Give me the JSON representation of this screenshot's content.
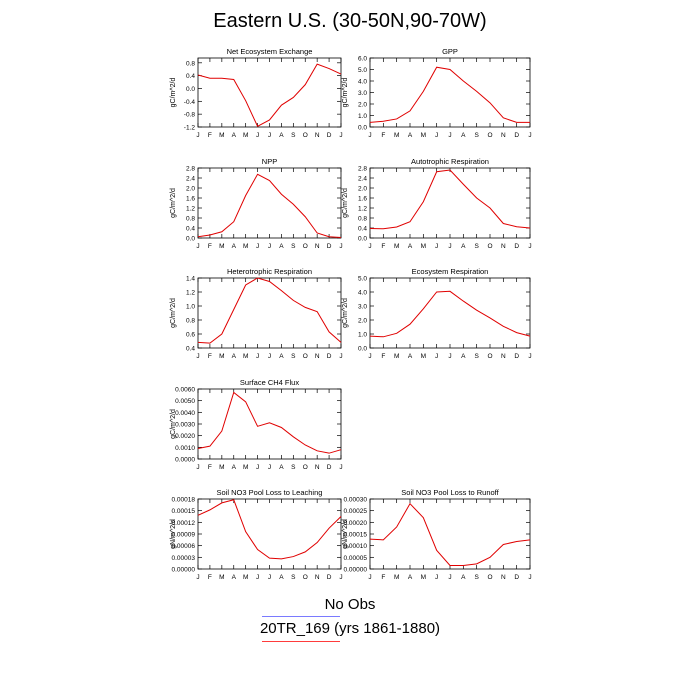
{
  "title": "Eastern U.S. (30-50N,90-70W)",
  "legend": [
    {
      "label": "No Obs",
      "color": "#7a7aff"
    },
    {
      "label": "20TR_169 (yrs 1861-1880)",
      "color": "#ff3b3b"
    }
  ],
  "line_color": "#e00000",
  "chart_data": [
    {
      "type": "line",
      "title": "Net Ecosystem Exchange",
      "ylabel": "gC/m^2/d",
      "categories": [
        "J",
        "F",
        "M",
        "A",
        "M",
        "J",
        "J",
        "A",
        "S",
        "O",
        "N",
        "D",
        "J"
      ],
      "yticks": [
        "0.8",
        "0.4",
        "0.0",
        "-0.4",
        "-0.8",
        "-1.2"
      ],
      "ylim": [
        -1.2,
        0.95
      ],
      "values": [
        0.42,
        0.32,
        0.32,
        0.28,
        -0.38,
        -1.18,
        -0.98,
        -0.52,
        -0.28,
        0.12,
        0.76,
        0.62,
        0.45
      ]
    },
    {
      "type": "line",
      "title": "GPP",
      "ylabel": "gC/m^2/d",
      "categories": [
        "J",
        "F",
        "M",
        "A",
        "M",
        "J",
        "J",
        "A",
        "S",
        "O",
        "N",
        "D",
        "J"
      ],
      "yticks": [
        "6.0",
        "5.0",
        "4.0",
        "3.0",
        "2.0",
        "1.0",
        "0.0"
      ],
      "ylim": [
        0,
        6
      ],
      "values": [
        0.4,
        0.5,
        0.7,
        1.4,
        3.1,
        5.2,
        5.0,
        4.0,
        3.1,
        2.1,
        0.8,
        0.4,
        0.4
      ]
    },
    {
      "type": "line",
      "title": "NPP",
      "ylabel": "gC/m^2/d",
      "categories": [
        "J",
        "F",
        "M",
        "A",
        "M",
        "J",
        "J",
        "A",
        "S",
        "O",
        "N",
        "D",
        "J"
      ],
      "yticks": [
        "2.8",
        "2.4",
        "2.0",
        "1.6",
        "1.2",
        "0.8",
        "0.4",
        "0.0"
      ],
      "ylim": [
        0,
        2.8
      ],
      "values": [
        0.05,
        0.12,
        0.25,
        0.65,
        1.7,
        2.55,
        2.3,
        1.75,
        1.35,
        0.85,
        0.2,
        0.05,
        0.02
      ]
    },
    {
      "type": "line",
      "title": "Autotrophic Respiration",
      "ylabel": "gC/m^2/d",
      "categories": [
        "J",
        "F",
        "M",
        "A",
        "M",
        "J",
        "J",
        "A",
        "S",
        "O",
        "N",
        "D",
        "J"
      ],
      "yticks": [
        "2.8",
        "2.4",
        "2.0",
        "1.6",
        "1.2",
        "0.8",
        "0.4",
        "0.0"
      ],
      "ylim": [
        0,
        2.8
      ],
      "values": [
        0.38,
        0.37,
        0.44,
        0.65,
        1.45,
        2.65,
        2.72,
        2.15,
        1.6,
        1.2,
        0.58,
        0.45,
        0.4
      ]
    },
    {
      "type": "line",
      "title": "Heterotrophic Respiration",
      "ylabel": "gC/m^2/d",
      "categories": [
        "J",
        "F",
        "M",
        "A",
        "M",
        "J",
        "J",
        "A",
        "S",
        "O",
        "N",
        "D",
        "J"
      ],
      "yticks": [
        "1.4",
        "1.2",
        "1.0",
        "0.8",
        "0.6",
        "0.4"
      ],
      "ylim": [
        0.4,
        1.4
      ],
      "values": [
        0.48,
        0.47,
        0.6,
        0.95,
        1.3,
        1.4,
        1.35,
        1.22,
        1.08,
        0.98,
        0.92,
        0.63,
        0.48
      ]
    },
    {
      "type": "line",
      "title": "Ecosystem Respiration",
      "ylabel": "gC/m^2/d",
      "categories": [
        "J",
        "F",
        "M",
        "A",
        "M",
        "J",
        "J",
        "A",
        "S",
        "O",
        "N",
        "D",
        "J"
      ],
      "yticks": [
        "5.0",
        "4.0",
        "3.0",
        "2.0",
        "1.0",
        "0.0"
      ],
      "ylim": [
        0,
        5
      ],
      "values": [
        0.85,
        0.8,
        1.05,
        1.7,
        2.8,
        4.0,
        4.05,
        3.35,
        2.7,
        2.15,
        1.55,
        1.1,
        0.85
      ]
    },
    {
      "type": "line",
      "title": "Surface CH4 Flux",
      "ylabel": "gC/m^2/d",
      "categories": [
        "J",
        "F",
        "M",
        "A",
        "M",
        "J",
        "J",
        "A",
        "S",
        "O",
        "N",
        "D",
        "J"
      ],
      "yticks": [
        "0.0060",
        "0.0050",
        "0.0040",
        "0.0030",
        "0.0020",
        "0.0010",
        "0.0000"
      ],
      "ylim": [
        0,
        0.006
      ],
      "values": [
        0.0009,
        0.0011,
        0.0024,
        0.0057,
        0.0049,
        0.0028,
        0.0031,
        0.0027,
        0.0019,
        0.0012,
        0.0007,
        0.0005,
        0.0008
      ]
    },
    {
      "type": "line",
      "title": "Soil NO3 Pool Loss to Leaching",
      "ylabel": "gN/m^2/d",
      "categories": [
        "J",
        "F",
        "M",
        "A",
        "M",
        "J",
        "J",
        "A",
        "S",
        "O",
        "N",
        "D",
        "J"
      ],
      "yticks": [
        "0.00018",
        "0.00015",
        "0.00012",
        "0.00009",
        "0.00006",
        "0.00003",
        "0.00000"
      ],
      "ylim": [
        0,
        0.00018
      ],
      "values": [
        0.000138,
        0.000152,
        0.00017,
        0.000178,
        9.6e-05,
        5e-05,
        2.8e-05,
        2.6e-05,
        3.2e-05,
        4.4e-05,
        6.8e-05,
        0.000105,
        0.000135
      ]
    },
    {
      "type": "line",
      "title": "Soil NO3 Pool Loss to Runoff",
      "ylabel": "gN/m^2/d",
      "categories": [
        "J",
        "F",
        "M",
        "A",
        "M",
        "J",
        "J",
        "A",
        "S",
        "O",
        "N",
        "D",
        "J"
      ],
      "yticks": [
        "0.00030",
        "0.00025",
        "0.00020",
        "0.00015",
        "0.00010",
        "0.00005",
        "0.00000"
      ],
      "ylim": [
        0,
        0.0003
      ],
      "values": [
        0.000128,
        0.000125,
        0.00018,
        0.00028,
        0.00022,
        8e-05,
        1.5e-05,
        1.5e-05,
        2.2e-05,
        5e-05,
        0.000105,
        0.000118,
        0.000125
      ]
    }
  ]
}
